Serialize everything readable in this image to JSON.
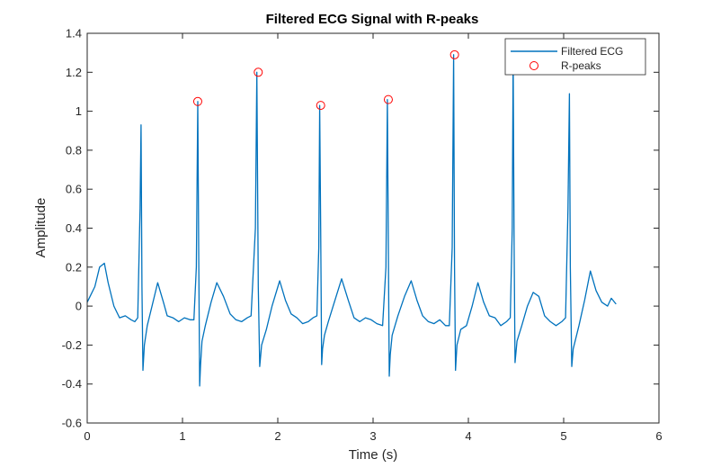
{
  "chart_data": {
    "type": "line",
    "title": "Filtered ECG Signal with R-peaks",
    "xlabel": "Time (s)",
    "ylabel": "Amplitude",
    "xlim": [
      0,
      6
    ],
    "ylim": [
      -0.6,
      1.4
    ],
    "xticks": [
      0,
      1,
      2,
      3,
      4,
      5,
      6
    ],
    "yticks": [
      -0.6,
      -0.4,
      -0.2,
      0,
      0.2,
      0.4,
      0.6,
      0.8,
      1,
      1.2,
      1.4
    ],
    "grid": false,
    "legend_position": "top-right",
    "series": [
      {
        "name": "Filtered ECG",
        "color": "#0072BD",
        "style": "line",
        "x": [
          0,
          0.03,
          0.08,
          0.13,
          0.18,
          0.22,
          0.28,
          0.34,
          0.4,
          0.46,
          0.5,
          0.53,
          0.555,
          0.565,
          0.575,
          0.585,
          0.6,
          0.63,
          0.68,
          0.74,
          0.8,
          0.84,
          0.9,
          0.96,
          1.02,
          1.08,
          1.12,
          1.145,
          1.16,
          1.17,
          1.18,
          1.19,
          1.205,
          1.24,
          1.3,
          1.36,
          1.43,
          1.5,
          1.56,
          1.62,
          1.68,
          1.72,
          1.765,
          1.78,
          1.795,
          1.81,
          1.83,
          1.88,
          1.94,
          2.02,
          2.08,
          2.14,
          2.2,
          2.26,
          2.32,
          2.37,
          2.41,
          2.43,
          2.44,
          2.45,
          2.46,
          2.47,
          2.49,
          2.53,
          2.6,
          2.67,
          2.74,
          2.8,
          2.86,
          2.92,
          2.98,
          3.04,
          3.1,
          3.135,
          3.15,
          3.16,
          3.17,
          3.18,
          3.2,
          3.26,
          3.33,
          3.4,
          3.46,
          3.52,
          3.58,
          3.64,
          3.7,
          3.76,
          3.8,
          3.83,
          3.845,
          3.855,
          3.865,
          3.88,
          3.92,
          3.98,
          4.04,
          4.1,
          4.16,
          4.22,
          4.28,
          4.34,
          4.4,
          4.44,
          4.46,
          4.47,
          4.48,
          4.49,
          4.51,
          4.56,
          4.62,
          4.68,
          4.74,
          4.8,
          4.86,
          4.92,
          4.98,
          5.02,
          5.045,
          5.06,
          5.07,
          5.085,
          5.1,
          5.16,
          5.22,
          5.28,
          5.34,
          5.4,
          5.46,
          5.5,
          5.55
        ],
        "y": [
          0.02,
          0.05,
          0.1,
          0.2,
          0.22,
          0.12,
          0.0,
          -0.06,
          -0.05,
          -0.07,
          -0.08,
          -0.06,
          0.5,
          0.93,
          0.1,
          -0.33,
          -0.2,
          -0.1,
          0.0,
          0.12,
          0.02,
          -0.05,
          -0.06,
          -0.08,
          -0.06,
          -0.07,
          -0.07,
          0.2,
          1.05,
          0.3,
          -0.41,
          -0.3,
          -0.18,
          -0.1,
          0.02,
          0.12,
          0.05,
          -0.04,
          -0.07,
          -0.08,
          -0.06,
          -0.05,
          0.4,
          1.2,
          0.1,
          -0.31,
          -0.2,
          -0.12,
          0.0,
          0.13,
          0.03,
          -0.04,
          -0.06,
          -0.09,
          -0.08,
          -0.06,
          -0.05,
          0.3,
          1.03,
          0.4,
          -0.3,
          -0.22,
          -0.15,
          -0.08,
          0.03,
          0.14,
          0.03,
          -0.06,
          -0.08,
          -0.06,
          -0.07,
          -0.09,
          -0.1,
          0.2,
          1.06,
          0.3,
          -0.36,
          -0.25,
          -0.15,
          -0.05,
          0.05,
          0.13,
          0.03,
          -0.05,
          -0.08,
          -0.09,
          -0.07,
          -0.1,
          -0.1,
          0.3,
          1.29,
          0.2,
          -0.33,
          -0.2,
          -0.12,
          -0.1,
          0.0,
          0.12,
          0.02,
          -0.05,
          -0.06,
          -0.1,
          -0.08,
          -0.06,
          0.4,
          1.28,
          0.3,
          -0.29,
          -0.18,
          -0.1,
          0.0,
          0.07,
          0.05,
          -0.05,
          -0.08,
          -0.1,
          -0.08,
          -0.06,
          0.5,
          1.09,
          0.2,
          -0.31,
          -0.22,
          -0.1,
          0.03,
          0.18,
          0.08,
          0.02,
          0.0,
          0.04,
          0.01
        ]
      },
      {
        "name": "R-peaks",
        "color": "#FF0000",
        "style": "marker-circle",
        "x": [
          1.16,
          1.795,
          2.45,
          3.16,
          3.855
        ],
        "y": [
          1.05,
          1.2,
          1.03,
          1.06,
          1.29
        ]
      }
    ]
  }
}
